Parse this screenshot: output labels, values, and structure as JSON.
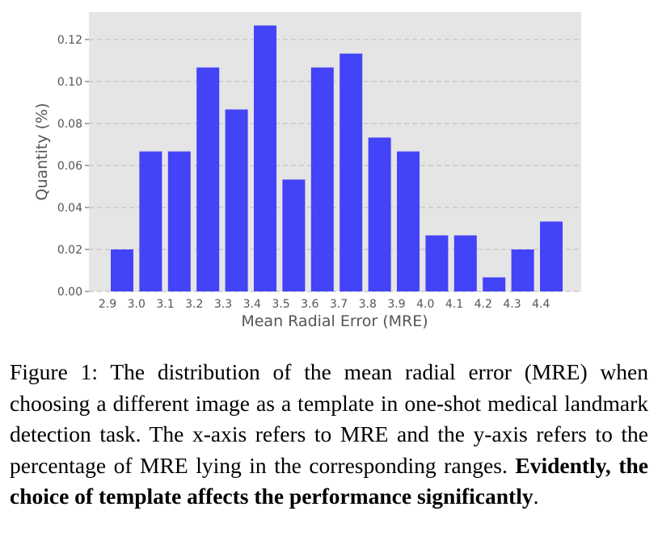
{
  "chart_data": {
    "type": "bar",
    "categories": [
      "2.9",
      "3.0",
      "3.1",
      "3.2",
      "3.3",
      "3.4",
      "3.5",
      "3.6",
      "3.7",
      "3.8",
      "3.9",
      "4.0",
      "4.1",
      "4.2",
      "4.3",
      "4.4"
    ],
    "values": [
      0.02,
      0.0667,
      0.0667,
      0.1067,
      0.0867,
      0.1267,
      0.0533,
      0.1067,
      0.1133,
      0.0733,
      0.0667,
      0.0267,
      0.0267,
      0.0067,
      0.02,
      0.0333
    ],
    "xlabel": "Mean Radial Error (MRE)",
    "ylabel": "Quantity (%)",
    "ylim": [
      0,
      0.13
    ],
    "yticks": [
      "0.00",
      "0.02",
      "0.04",
      "0.06",
      "0.08",
      "0.10",
      "0.12"
    ],
    "grid": "horizontal dashed",
    "bar_color": "#4343f8",
    "plot_background": "#e5e5e5"
  },
  "caption": {
    "label": "Figure 1:",
    "text": " The distribution of the mean radial error (MRE) when choosing a different image as a template in one-shot medical landmark detection task. The x-axis refers to MRE and the y-axis refers to the percentage of MRE lying in the corresponding ranges. ",
    "emphasis": "Evidently, the choice of template affects the performance significantly",
    "end": "."
  }
}
